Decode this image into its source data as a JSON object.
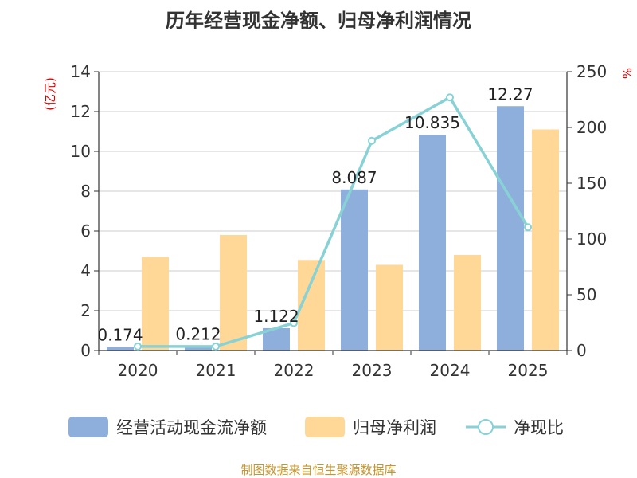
{
  "chart_data": {
    "type": "bar",
    "title": "历年经营现金净额、归母净利润情况",
    "categories": [
      "2020",
      "2021",
      "2022",
      "2023",
      "2024",
      "2025"
    ],
    "series": [
      {
        "name": "经营活动现金流净额",
        "type": "bar",
        "axis": "left",
        "color": "#8eaedb",
        "values": [
          0.174,
          0.212,
          1.122,
          8.087,
          10.835,
          12.27
        ],
        "labels": [
          "0.174",
          "0.212",
          "1.122",
          "8.087",
          "10.835",
          "12.27"
        ]
      },
      {
        "name": "归母净利润",
        "type": "bar",
        "axis": "left",
        "color": "#ffd898",
        "values": [
          4.7,
          5.8,
          4.55,
          4.3,
          4.8,
          11.1
        ]
      },
      {
        "name": "净现比",
        "type": "line",
        "axis": "right",
        "color": "#88d2d6",
        "values": [
          3.7,
          3.7,
          24.7,
          188,
          227,
          110.5
        ]
      }
    ],
    "y_left": {
      "label": "(亿元)",
      "min": 0,
      "max": 14,
      "ticks": [
        0,
        2,
        4,
        6,
        8,
        10,
        12,
        14
      ]
    },
    "y_right": {
      "label": "%",
      "min": 0,
      "max": 250,
      "ticks": [
        0,
        50,
        100,
        150,
        200,
        250
      ]
    },
    "grid": true,
    "legend_position": "bottom",
    "source": "制图数据来自恒生聚源数据库"
  }
}
